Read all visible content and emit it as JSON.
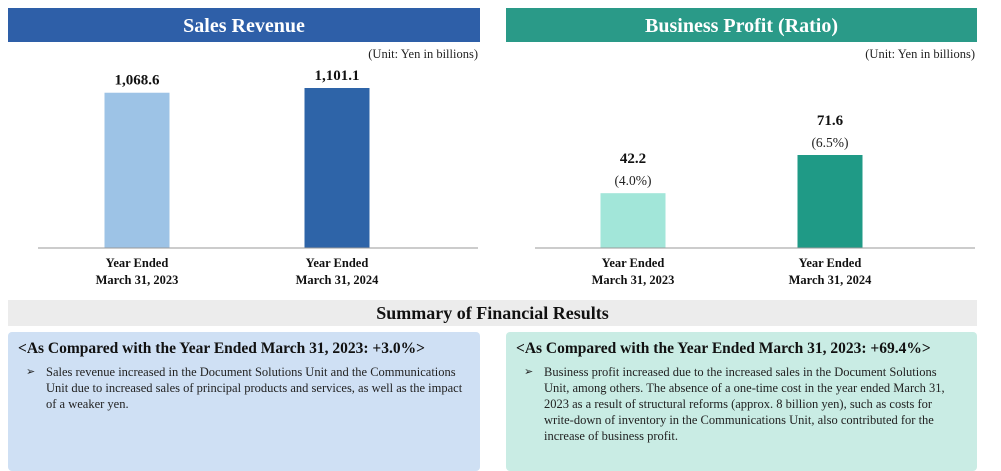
{
  "chart_data": [
    {
      "type": "bar",
      "title": "Sales Revenue",
      "unit": "(Unit: Yen in billions)",
      "categories": [
        [
          "Year Ended",
          "March 31, 2023"
        ],
        [
          "Year Ended",
          "March 31, 2024"
        ]
      ],
      "values": [
        1068.6,
        1101.1
      ],
      "value_labels": [
        "1,068.6",
        "1,101.1"
      ],
      "colors": [
        "#9dc3e6",
        "#2e64a8"
      ],
      "header_color": "#2e5fa8"
    },
    {
      "type": "bar",
      "title": "Business Profit (Ratio)",
      "unit": "(Unit: Yen in billions)",
      "categories": [
        [
          "Year Ended",
          "March 31, 2023"
        ],
        [
          "Year Ended",
          "March 31, 2024"
        ]
      ],
      "values": [
        42.2,
        71.6
      ],
      "value_labels": [
        "42.2",
        "71.6"
      ],
      "ratios": [
        4.0,
        6.5
      ],
      "ratio_labels": [
        "(4.0%)",
        "(6.5%)"
      ],
      "colors": [
        "#a2e6d9",
        "#1f9a86"
      ],
      "header_color": "#2a9a88"
    }
  ],
  "summary": {
    "title": "Summary of Financial Results",
    "sections": [
      {
        "heading": "<As Compared with the Year Ended March 31, 2023: +3.0%>",
        "bullets": [
          "Sales revenue increased in the Document Solutions Unit and the Communications Unit due to increased sales of principal products and services, as well as the impact of a weaker yen."
        ]
      },
      {
        "heading": "<As Compared with the Year Ended March 31, 2023: +69.4%>",
        "bullets": [
          "Business profit increased due to the increased sales in the Document Solutions Unit, among others. The absence of a one-time cost in the year ended March 31, 2023 as a result of structural reforms (approx. 8 billion yen), such as costs for write-down of inventory in the Communications Unit, also contributed for the increase of business profit."
        ]
      }
    ]
  }
}
